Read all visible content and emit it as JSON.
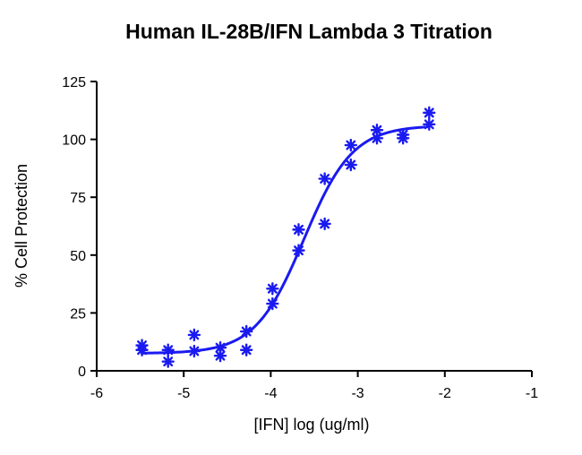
{
  "chart_data": {
    "type": "scatter",
    "title": "Human IL-28B/IFN Lambda 3 Titration",
    "xlabel": "[IFN] log (ug/ml)",
    "ylabel": "% Cell Protection",
    "xlim": [
      -6,
      -1
    ],
    "ylim": [
      0,
      125
    ],
    "x_ticks": [
      -6,
      -5,
      -4,
      -3,
      -2,
      -1
    ],
    "y_ticks": [
      0,
      25,
      50,
      75,
      100,
      125
    ],
    "x_tick_labels": [
      "-6",
      "-5",
      "-4",
      "-3",
      "-2",
      "-1"
    ],
    "y_tick_labels": [
      "0",
      "25",
      "50",
      "75",
      "100",
      "125"
    ],
    "marker": "asterisk",
    "color": "#1a1af0",
    "grid": false,
    "series": [
      {
        "points": [
          [
            -5.48,
            11
          ],
          [
            -5.48,
            9
          ],
          [
            -5.18,
            9
          ],
          [
            -5.18,
            4
          ],
          [
            -4.88,
            15.5
          ],
          [
            -4.88,
            8.5
          ],
          [
            -4.58,
            10
          ],
          [
            -4.58,
            6.5
          ],
          [
            -4.28,
            17
          ],
          [
            -4.28,
            9
          ],
          [
            -3.98,
            35.5
          ],
          [
            -3.98,
            29
          ],
          [
            -3.68,
            61
          ],
          [
            -3.68,
            52
          ],
          [
            -3.38,
            83
          ],
          [
            -3.38,
            63.5
          ],
          [
            -3.08,
            97.5
          ],
          [
            -3.08,
            89
          ],
          [
            -2.78,
            104
          ],
          [
            -2.78,
            100.5
          ],
          [
            -2.48,
            102
          ],
          [
            -2.48,
            100.5
          ],
          [
            -2.18,
            111.5
          ],
          [
            -2.18,
            106.5
          ]
        ]
      }
    ],
    "fit_curve": {
      "type": "four-parameter-logistic",
      "bottom": 7.5,
      "top": 106,
      "log_ec50": -3.62,
      "hill_slope": 1.55,
      "x_range": [
        -5.48,
        -2.18
      ]
    }
  }
}
